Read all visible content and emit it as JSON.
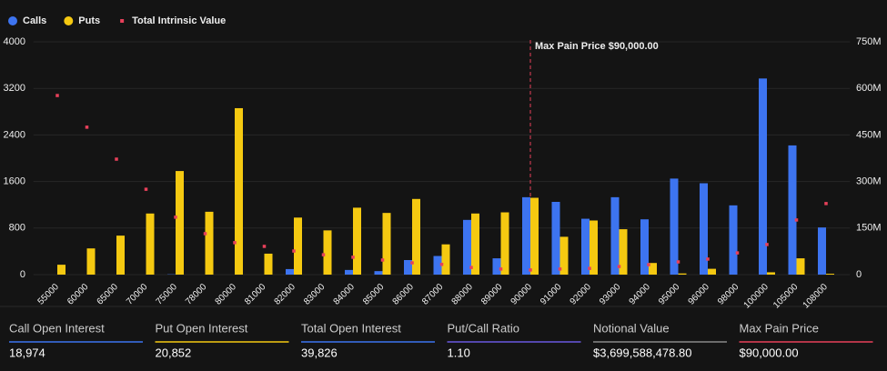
{
  "chart_data": {
    "type": "bar",
    "categories": [
      "55000",
      "60000",
      "65000",
      "70000",
      "75000",
      "78000",
      "80000",
      "81000",
      "82000",
      "83000",
      "84000",
      "85000",
      "86000",
      "87000",
      "88000",
      "89000",
      "90000",
      "91000",
      "92000",
      "93000",
      "94000",
      "95000",
      "96000",
      "98000",
      "100000",
      "105000",
      "108000"
    ],
    "series": [
      {
        "name": "Calls",
        "color": "#3d74f0",
        "values": [
          0,
          0,
          0,
          0,
          5,
          0,
          0,
          0,
          95,
          0,
          80,
          60,
          250,
          320,
          940,
          280,
          1330,
          1250,
          960,
          1330,
          950,
          1650,
          1570,
          1190,
          3370,
          2220,
          810
        ]
      },
      {
        "name": "Puts",
        "color": "#f5c911",
        "values": [
          170,
          450,
          670,
          1050,
          1780,
          1080,
          2860,
          360,
          980,
          760,
          1150,
          1060,
          1300,
          520,
          1050,
          1070,
          1320,
          650,
          930,
          780,
          200,
          20,
          100,
          0,
          40,
          280,
          15
        ]
      },
      {
        "name": "Total Intrinsic Value",
        "color": "#e8405a",
        "axis": "y2",
        "values": [
          577000000,
          475000000,
          372000000,
          275000000,
          185000000,
          132000000,
          103000000,
          91000000,
          76000000,
          64000000,
          56000000,
          47000000,
          38000000,
          33000000,
          23000000,
          18000000,
          15000000,
          18000000,
          20000000,
          26000000,
          32000000,
          41000000,
          50000000,
          70000000,
          97000000,
          176000000,
          229000000
        ]
      }
    ],
    "ylim": [
      0,
      4000
    ],
    "yticks": [
      0,
      800,
      1600,
      2400,
      3200,
      4000
    ],
    "y2lim": [
      0,
      750000000
    ],
    "y2ticks": [
      0,
      {
        "value": 150000000,
        "label": "150M"
      },
      {
        "value": 300000000,
        "label": "300M"
      },
      {
        "value": 450000000,
        "label": "450M"
      },
      {
        "value": 600000000,
        "label": "600M"
      },
      {
        "value": 750000000,
        "label": "750M"
      }
    ],
    "grid": true,
    "annotation": {
      "text": "Max Pain Price $90,000.00",
      "x": "90000"
    }
  },
  "stats": [
    {
      "label": "Call Open Interest",
      "value": "18,974",
      "color": "#3d74f0"
    },
    {
      "label": "Put Open Interest",
      "value": "20,852",
      "color": "#f5c911"
    },
    {
      "label": "Total Open Interest",
      "value": "39,826",
      "color": "#3d74f0"
    },
    {
      "label": "Put/Call Ratio",
      "value": "1.10",
      "color": "#6a58e0"
    },
    {
      "label": "Notional Value",
      "value": "$3,699,588,478.80",
      "color": "#888888"
    },
    {
      "label": "Max Pain Price",
      "value": "$90,000.00",
      "color": "#e8405a"
    }
  ]
}
